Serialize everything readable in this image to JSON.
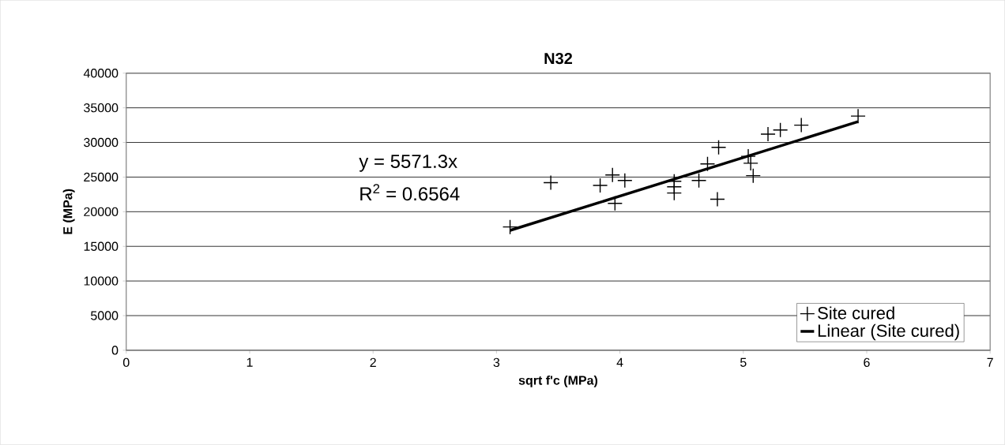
{
  "chart_data": {
    "type": "scatter",
    "title": "N32",
    "xlabel": "sqrt f'c (MPa)",
    "ylabel": "E (MPa)",
    "xlim": [
      0,
      7
    ],
    "xticks": [
      0,
      1,
      2,
      3,
      4,
      5,
      6,
      7
    ],
    "ylim": [
      0,
      40000
    ],
    "yticks": [
      0,
      5000,
      10000,
      15000,
      20000,
      25000,
      30000,
      35000,
      40000
    ],
    "grid": "y",
    "legend": "bottom right",
    "annotations": [
      "y = 5571.3x",
      "R$^{2}$ = 0.6564"
    ],
    "series": [
      {
        "name": "Site cured",
        "marker": "cross",
        "color": "#000000",
        "x": [
          3.11,
          3.44,
          3.84,
          3.94,
          3.96,
          4.04,
          4.44,
          4.44,
          4.44,
          4.64,
          4.71,
          4.8,
          4.79,
          5.04,
          5.06,
          5.08,
          5.2,
          5.3,
          5.47,
          5.93
        ],
        "values": [
          17800,
          24200,
          23800,
          25300,
          21200,
          24500,
          24400,
          23600,
          22700,
          24500,
          26900,
          29300,
          21800,
          28000,
          27000,
          25200,
          31200,
          31800,
          32500,
          33800
        ]
      },
      {
        "name": "Linear (Site cured)",
        "type": "line",
        "marker": "none",
        "color": "#000000",
        "x": [
          3.11,
          5.93
        ],
        "values": [
          17300,
          33000
        ]
      }
    ]
  }
}
